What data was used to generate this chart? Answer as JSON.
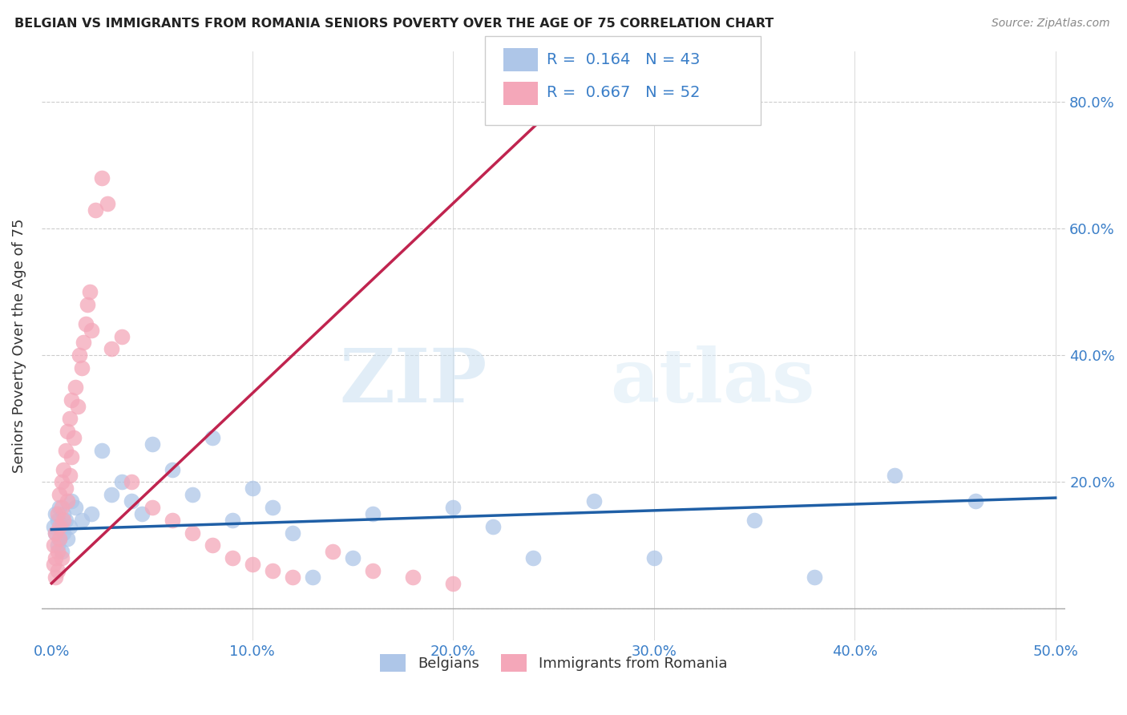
{
  "title": "BELGIAN VS IMMIGRANTS FROM ROMANIA SENIORS POVERTY OVER THE AGE OF 75 CORRELATION CHART",
  "source": "Source: ZipAtlas.com",
  "ylabel": "Seniors Poverty Over the Age of 75",
  "xlim": [
    -0.005,
    0.505
  ],
  "ylim": [
    -0.05,
    0.88
  ],
  "xticks": [
    0.0,
    0.1,
    0.2,
    0.3,
    0.4,
    0.5
  ],
  "xtick_labels": [
    "0.0%",
    "10.0%",
    "20.0%",
    "30.0%",
    "40.0%",
    "50.0%"
  ],
  "ytick_positions": [
    0.0,
    0.2,
    0.4,
    0.6,
    0.8
  ],
  "ytick_labels": [
    "",
    "20.0%",
    "40.0%",
    "60.0%",
    "80.0%"
  ],
  "belgian_color": "#aec6e8",
  "romanian_color": "#f4a7b9",
  "belgian_line_color": "#1f5fa6",
  "romanian_line_color": "#c0244f",
  "R_belgian": 0.164,
  "N_belgian": 43,
  "R_romanian": 0.667,
  "N_romanian": 52,
  "watermark_zip": "ZIP",
  "watermark_atlas": "atlas",
  "legend_labels": [
    "Belgians",
    "Immigrants from Romania"
  ],
  "belgians_x": [
    0.001,
    0.002,
    0.002,
    0.003,
    0.003,
    0.004,
    0.004,
    0.005,
    0.005,
    0.006,
    0.006,
    0.007,
    0.008,
    0.009,
    0.01,
    0.012,
    0.015,
    0.02,
    0.025,
    0.03,
    0.035,
    0.04,
    0.045,
    0.05,
    0.06,
    0.07,
    0.08,
    0.09,
    0.1,
    0.11,
    0.12,
    0.13,
    0.15,
    0.16,
    0.2,
    0.22,
    0.24,
    0.27,
    0.3,
    0.35,
    0.38,
    0.42,
    0.46
  ],
  "belgians_y": [
    0.13,
    0.15,
    0.12,
    0.1,
    0.14,
    0.11,
    0.16,
    0.09,
    0.13,
    0.12,
    0.15,
    0.14,
    0.11,
    0.13,
    0.17,
    0.16,
    0.14,
    0.15,
    0.25,
    0.18,
    0.2,
    0.17,
    0.15,
    0.26,
    0.22,
    0.18,
    0.27,
    0.14,
    0.19,
    0.16,
    0.12,
    0.05,
    0.08,
    0.15,
    0.16,
    0.13,
    0.08,
    0.17,
    0.08,
    0.14,
    0.05,
    0.21,
    0.17
  ],
  "romanians_x": [
    0.001,
    0.001,
    0.002,
    0.002,
    0.002,
    0.003,
    0.003,
    0.003,
    0.004,
    0.004,
    0.004,
    0.005,
    0.005,
    0.005,
    0.006,
    0.006,
    0.007,
    0.007,
    0.008,
    0.008,
    0.009,
    0.009,
    0.01,
    0.01,
    0.011,
    0.012,
    0.013,
    0.014,
    0.015,
    0.016,
    0.017,
    0.018,
    0.019,
    0.02,
    0.022,
    0.025,
    0.028,
    0.03,
    0.035,
    0.04,
    0.05,
    0.06,
    0.07,
    0.08,
    0.09,
    0.1,
    0.11,
    0.12,
    0.14,
    0.16,
    0.18,
    0.2
  ],
  "romanians_y": [
    0.1,
    0.07,
    0.05,
    0.08,
    0.12,
    0.06,
    0.09,
    0.15,
    0.13,
    0.11,
    0.18,
    0.08,
    0.16,
    0.2,
    0.14,
    0.22,
    0.19,
    0.25,
    0.17,
    0.28,
    0.21,
    0.3,
    0.24,
    0.33,
    0.27,
    0.35,
    0.32,
    0.4,
    0.38,
    0.42,
    0.45,
    0.48,
    0.5,
    0.44,
    0.63,
    0.68,
    0.64,
    0.41,
    0.43,
    0.2,
    0.16,
    0.14,
    0.12,
    0.1,
    0.08,
    0.07,
    0.06,
    0.05,
    0.09,
    0.06,
    0.05,
    0.04
  ],
  "belgian_trend_x": [
    0.0,
    0.5
  ],
  "belgian_trend_y": [
    0.125,
    0.175
  ],
  "romanian_trend_x": [
    0.0,
    0.27
  ],
  "romanian_trend_y": [
    0.04,
    0.85
  ]
}
